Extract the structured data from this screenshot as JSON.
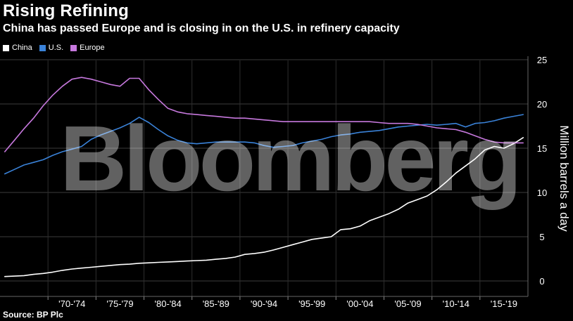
{
  "header": {
    "title": "Rising Refining",
    "subtitle": "China has passed Europe and is closing in on the U.S. in refinery capacity"
  },
  "watermark": "Bloomberg",
  "source": "Source: BP Plc",
  "chart_data": {
    "type": "line",
    "title": "Rising Refining",
    "subtitle": "China has passed Europe and is closing in on the U.S. in refinery capacity",
    "ylabel": "Million barrels a day",
    "ylim": [
      0,
      25
    ],
    "yticks": [
      0,
      5,
      10,
      15,
      20,
      25
    ],
    "x_start": 1965,
    "x_end": 2019,
    "tick_labels": [
      "'70-'74",
      "'75-'79",
      "'80-'84",
      "'85-'89",
      "'90-'94",
      "'95-'99",
      "'00-'04",
      "'05-'09",
      "'10-'14",
      "'15-'19"
    ],
    "legend_position": "top-left",
    "grid": true,
    "series": [
      {
        "name": "China",
        "color": "#ffffff",
        "values": [
          0.5,
          0.55,
          0.6,
          0.75,
          0.85,
          1.0,
          1.2,
          1.35,
          1.45,
          1.55,
          1.65,
          1.75,
          1.85,
          1.9,
          2.0,
          2.05,
          2.1,
          2.15,
          2.2,
          2.25,
          2.3,
          2.35,
          2.45,
          2.55,
          2.7,
          3.0,
          3.1,
          3.25,
          3.5,
          3.8,
          4.1,
          4.4,
          4.7,
          4.85,
          5.0,
          5.8,
          5.9,
          6.2,
          6.8,
          7.2,
          7.6,
          8.1,
          8.8,
          9.2,
          9.6,
          10.3,
          11.2,
          12.2,
          13.0,
          13.8,
          14.8,
          15.2,
          15.0,
          15.5,
          16.2
        ]
      },
      {
        "name": "U.S.",
        "color": "#3a82d8",
        "values": [
          12.1,
          12.6,
          13.1,
          13.4,
          13.7,
          14.2,
          14.6,
          14.9,
          15.2,
          16.0,
          16.5,
          16.9,
          17.3,
          17.8,
          18.5,
          17.9,
          17.1,
          16.4,
          15.9,
          15.6,
          15.5,
          15.6,
          15.7,
          15.7,
          15.7,
          15.7,
          15.6,
          15.3,
          15.1,
          15.2,
          15.3,
          15.6,
          15.8,
          16.0,
          16.3,
          16.5,
          16.6,
          16.8,
          16.9,
          17.0,
          17.2,
          17.4,
          17.5,
          17.6,
          17.7,
          17.6,
          17.7,
          17.8,
          17.4,
          17.8,
          17.9,
          18.1,
          18.4,
          18.6,
          18.8
        ]
      },
      {
        "name": "Europe",
        "color": "#c678dd",
        "values": [
          14.6,
          15.9,
          17.2,
          18.4,
          19.8,
          21.0,
          22.0,
          22.8,
          23.0,
          22.8,
          22.5,
          22.2,
          22.0,
          22.9,
          22.9,
          21.6,
          20.5,
          19.5,
          19.1,
          18.9,
          18.8,
          18.7,
          18.6,
          18.5,
          18.4,
          18.4,
          18.3,
          18.2,
          18.1,
          18.0,
          18.0,
          18.0,
          18.0,
          18.0,
          18.0,
          18.0,
          18.0,
          18.0,
          18.0,
          17.9,
          17.8,
          17.8,
          17.8,
          17.7,
          17.5,
          17.3,
          17.2,
          17.1,
          16.8,
          16.4,
          16.0,
          15.7,
          15.6,
          15.6,
          15.6
        ]
      }
    ]
  }
}
